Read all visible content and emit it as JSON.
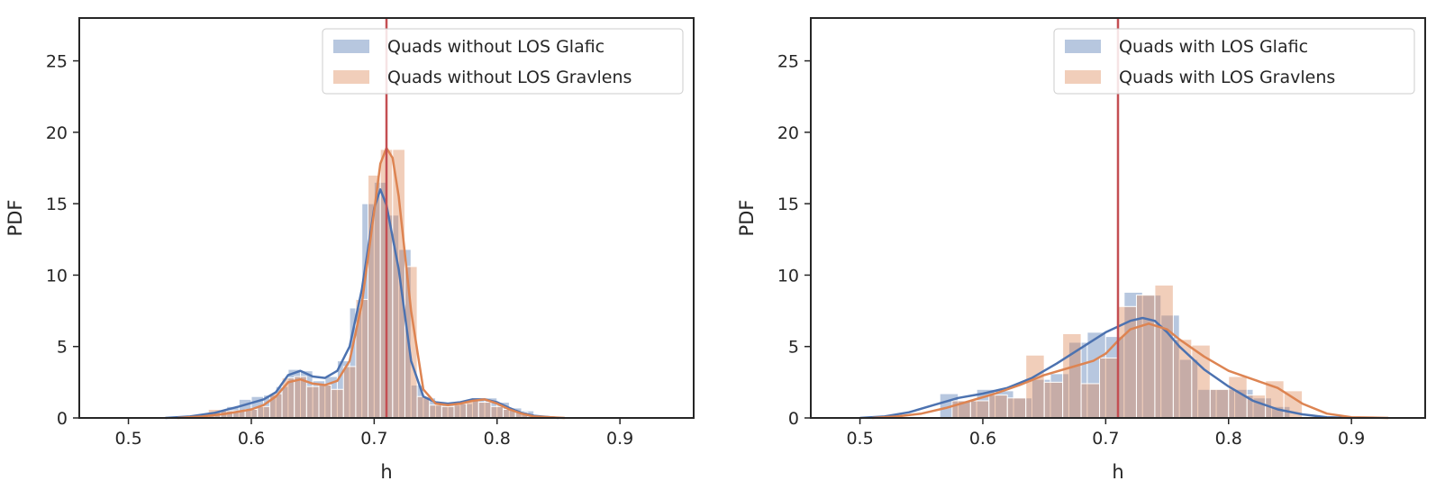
{
  "chart_data": [
    {
      "type": "histogram",
      "xlabel": "h",
      "ylabel": "PDF",
      "xlim": [
        0.46,
        0.96
      ],
      "ylim": [
        0,
        28
      ],
      "xticks": [
        0.5,
        0.6,
        0.7,
        0.8,
        0.9
      ],
      "xtick_labels": [
        "0.5",
        "0.6",
        "0.7",
        "0.8",
        "0.9"
      ],
      "yticks": [
        0,
        5,
        10,
        15,
        20,
        25
      ],
      "ytick_labels": [
        "0",
        "5",
        "10",
        "15",
        "20",
        "25"
      ],
      "grid": false,
      "legend_position": "top-right",
      "reference_line": {
        "x": 0.71,
        "color": "#c44e52"
      },
      "series": [
        {
          "name": "Quads without LOS Glafic",
          "color": "#4c72b0",
          "bins": [
            {
              "x0": 0.55,
              "x1": 0.56,
              "y": 0.1
            },
            {
              "x0": 0.56,
              "x1": 0.57,
              "y": 0.3
            },
            {
              "x0": 0.57,
              "x1": 0.58,
              "y": 0.5
            },
            {
              "x0": 0.58,
              "x1": 0.59,
              "y": 0.8
            },
            {
              "x0": 0.59,
              "x1": 0.6,
              "y": 1.3
            },
            {
              "x0": 0.6,
              "x1": 0.61,
              "y": 1.5
            },
            {
              "x0": 0.61,
              "x1": 0.62,
              "y": 1.6
            },
            {
              "x0": 0.62,
              "x1": 0.63,
              "y": 2.2
            },
            {
              "x0": 0.63,
              "x1": 0.64,
              "y": 3.4
            },
            {
              "x0": 0.64,
              "x1": 0.65,
              "y": 3.3
            },
            {
              "x0": 0.65,
              "x1": 0.66,
              "y": 2.6
            },
            {
              "x0": 0.66,
              "x1": 0.67,
              "y": 2.9
            },
            {
              "x0": 0.67,
              "x1": 0.68,
              "y": 4.0
            },
            {
              "x0": 0.68,
              "x1": 0.69,
              "y": 7.7
            },
            {
              "x0": 0.69,
              "x1": 0.7,
              "y": 15.0
            },
            {
              "x0": 0.7,
              "x1": 0.71,
              "y": 16.5
            },
            {
              "x0": 0.71,
              "x1": 0.72,
              "y": 14.2
            },
            {
              "x0": 0.72,
              "x1": 0.73,
              "y": 11.8
            },
            {
              "x0": 0.73,
              "x1": 0.74,
              "y": 2.3
            },
            {
              "x0": 0.74,
              "x1": 0.75,
              "y": 1.4
            },
            {
              "x0": 0.75,
              "x1": 0.76,
              "y": 1.1
            },
            {
              "x0": 0.76,
              "x1": 0.77,
              "y": 0.9
            },
            {
              "x0": 0.77,
              "x1": 0.78,
              "y": 1.0
            },
            {
              "x0": 0.78,
              "x1": 0.79,
              "y": 1.3
            },
            {
              "x0": 0.79,
              "x1": 0.8,
              "y": 1.4
            },
            {
              "x0": 0.8,
              "x1": 0.81,
              "y": 1.1
            },
            {
              "x0": 0.81,
              "x1": 0.82,
              "y": 0.7
            },
            {
              "x0": 0.82,
              "x1": 0.83,
              "y": 0.5
            }
          ],
          "kde": [
            [
              0.53,
              0
            ],
            [
              0.55,
              0.1
            ],
            [
              0.57,
              0.35
            ],
            [
              0.59,
              0.8
            ],
            [
              0.61,
              1.3
            ],
            [
              0.62,
              1.8
            ],
            [
              0.63,
              3.0
            ],
            [
              0.64,
              3.3
            ],
            [
              0.65,
              2.9
            ],
            [
              0.66,
              2.8
            ],
            [
              0.67,
              3.3
            ],
            [
              0.68,
              5.0
            ],
            [
              0.69,
              9.0
            ],
            [
              0.7,
              14.7
            ],
            [
              0.705,
              16.0
            ],
            [
              0.71,
              14.9
            ],
            [
              0.72,
              10.4
            ],
            [
              0.73,
              4.0
            ],
            [
              0.74,
              1.5
            ],
            [
              0.75,
              1.1
            ],
            [
              0.76,
              1.0
            ],
            [
              0.77,
              1.1
            ],
            [
              0.78,
              1.3
            ],
            [
              0.79,
              1.3
            ],
            [
              0.8,
              1.1
            ],
            [
              0.81,
              0.7
            ],
            [
              0.82,
              0.35
            ],
            [
              0.83,
              0.15
            ],
            [
              0.85,
              0
            ]
          ]
        },
        {
          "name": "Quads without LOS Gravlens",
          "color": "#dd8452",
          "bins": [
            {
              "x0": 0.565,
              "x1": 0.575,
              "y": 0.6
            },
            {
              "x0": 0.575,
              "x1": 0.585,
              "y": 0.5
            },
            {
              "x0": 0.585,
              "x1": 0.595,
              "y": 0.5
            },
            {
              "x0": 0.595,
              "x1": 0.605,
              "y": 0.6
            },
            {
              "x0": 0.605,
              "x1": 0.615,
              "y": 0.8
            },
            {
              "x0": 0.615,
              "x1": 0.625,
              "y": 1.7
            },
            {
              "x0": 0.625,
              "x1": 0.635,
              "y": 2.8
            },
            {
              "x0": 0.635,
              "x1": 0.645,
              "y": 2.9
            },
            {
              "x0": 0.645,
              "x1": 0.655,
              "y": 2.2
            },
            {
              "x0": 0.655,
              "x1": 0.665,
              "y": 2.3
            },
            {
              "x0": 0.665,
              "x1": 0.675,
              "y": 2.0
            },
            {
              "x0": 0.675,
              "x1": 0.685,
              "y": 3.6
            },
            {
              "x0": 0.685,
              "x1": 0.695,
              "y": 8.3
            },
            {
              "x0": 0.695,
              "x1": 0.705,
              "y": 17.0
            },
            {
              "x0": 0.705,
              "x1": 0.715,
              "y": 18.8
            },
            {
              "x0": 0.715,
              "x1": 0.725,
              "y": 18.8
            },
            {
              "x0": 0.725,
              "x1": 0.735,
              "y": 10.6
            },
            {
              "x0": 0.735,
              "x1": 0.745,
              "y": 1.5
            },
            {
              "x0": 0.745,
              "x1": 0.755,
              "y": 0.9
            },
            {
              "x0": 0.755,
              "x1": 0.765,
              "y": 0.8
            },
            {
              "x0": 0.765,
              "x1": 0.775,
              "y": 1.0
            },
            {
              "x0": 0.775,
              "x1": 0.785,
              "y": 1.2
            },
            {
              "x0": 0.785,
              "x1": 0.795,
              "y": 1.1
            },
            {
              "x0": 0.795,
              "x1": 0.805,
              "y": 0.8
            },
            {
              "x0": 0.805,
              "x1": 0.815,
              "y": 0.6
            },
            {
              "x0": 0.815,
              "x1": 0.825,
              "y": 0.4
            }
          ],
          "kde": [
            [
              0.54,
              0
            ],
            [
              0.56,
              0.1
            ],
            [
              0.58,
              0.3
            ],
            [
              0.6,
              0.6
            ],
            [
              0.61,
              0.9
            ],
            [
              0.62,
              1.5
            ],
            [
              0.63,
              2.5
            ],
            [
              0.64,
              2.7
            ],
            [
              0.65,
              2.4
            ],
            [
              0.66,
              2.3
            ],
            [
              0.67,
              2.6
            ],
            [
              0.68,
              4.0
            ],
            [
              0.69,
              8.0
            ],
            [
              0.7,
              14.5
            ],
            [
              0.705,
              17.8
            ],
            [
              0.71,
              18.9
            ],
            [
              0.715,
              18.2
            ],
            [
              0.72,
              15.5
            ],
            [
              0.73,
              7.5
            ],
            [
              0.74,
              2.0
            ],
            [
              0.75,
              1.0
            ],
            [
              0.76,
              0.9
            ],
            [
              0.77,
              1.0
            ],
            [
              0.78,
              1.2
            ],
            [
              0.79,
              1.3
            ],
            [
              0.8,
              1.0
            ],
            [
              0.81,
              0.6
            ],
            [
              0.82,
              0.3
            ],
            [
              0.83,
              0.1
            ],
            [
              0.855,
              0
            ]
          ]
        }
      ]
    },
    {
      "type": "histogram",
      "xlabel": "h",
      "ylabel": "PDF",
      "xlim": [
        0.46,
        0.96
      ],
      "ylim": [
        0,
        28
      ],
      "xticks": [
        0.5,
        0.6,
        0.7,
        0.8,
        0.9
      ],
      "xtick_labels": [
        "0.5",
        "0.6",
        "0.7",
        "0.8",
        "0.9"
      ],
      "yticks": [
        0,
        5,
        10,
        15,
        20,
        25
      ],
      "ytick_labels": [
        "0",
        "5",
        "10",
        "15",
        "20",
        "25"
      ],
      "grid": false,
      "legend_position": "top-right",
      "reference_line": {
        "x": 0.71,
        "color": "#c44e52"
      },
      "series": [
        {
          "name": "Quads with LOS Glafic",
          "color": "#4c72b0",
          "bins": [
            {
              "x0": 0.565,
              "x1": 0.58,
              "y": 1.7
            },
            {
              "x0": 0.58,
              "x1": 0.595,
              "y": 1.2
            },
            {
              "x0": 0.595,
              "x1": 0.61,
              "y": 2.0
            },
            {
              "x0": 0.61,
              "x1": 0.625,
              "y": 1.9
            },
            {
              "x0": 0.625,
              "x1": 0.64,
              "y": 1.4
            },
            {
              "x0": 0.64,
              "x1": 0.655,
              "y": 2.7
            },
            {
              "x0": 0.655,
              "x1": 0.67,
              "y": 3.1
            },
            {
              "x0": 0.67,
              "x1": 0.685,
              "y": 5.3
            },
            {
              "x0": 0.685,
              "x1": 0.7,
              "y": 6.0
            },
            {
              "x0": 0.7,
              "x1": 0.715,
              "y": 5.7
            },
            {
              "x0": 0.715,
              "x1": 0.73,
              "y": 8.8
            },
            {
              "x0": 0.73,
              "x1": 0.745,
              "y": 8.6
            },
            {
              "x0": 0.745,
              "x1": 0.76,
              "y": 7.2
            },
            {
              "x0": 0.76,
              "x1": 0.775,
              "y": 4.1
            },
            {
              "x0": 0.775,
              "x1": 0.79,
              "y": 2.0
            },
            {
              "x0": 0.79,
              "x1": 0.805,
              "y": 2.0
            },
            {
              "x0": 0.805,
              "x1": 0.82,
              "y": 2.0
            },
            {
              "x0": 0.82,
              "x1": 0.835,
              "y": 1.4
            },
            {
              "x0": 0.835,
              "x1": 0.85,
              "y": 0.8
            }
          ],
          "kde": [
            [
              0.5,
              0
            ],
            [
              0.52,
              0.1
            ],
            [
              0.54,
              0.4
            ],
            [
              0.56,
              0.9
            ],
            [
              0.58,
              1.4
            ],
            [
              0.6,
              1.7
            ],
            [
              0.62,
              2.1
            ],
            [
              0.64,
              2.8
            ],
            [
              0.66,
              3.8
            ],
            [
              0.68,
              4.9
            ],
            [
              0.7,
              6.0
            ],
            [
              0.72,
              6.8
            ],
            [
              0.73,
              7.0
            ],
            [
              0.74,
              6.8
            ],
            [
              0.75,
              6.0
            ],
            [
              0.76,
              5.0
            ],
            [
              0.78,
              3.4
            ],
            [
              0.8,
              2.2
            ],
            [
              0.82,
              1.2
            ],
            [
              0.84,
              0.6
            ],
            [
              0.86,
              0.25
            ],
            [
              0.88,
              0.05
            ],
            [
              0.9,
              0
            ]
          ]
        },
        {
          "name": "Quads with LOS Gravlens",
          "color": "#dd8452",
          "bins": [
            {
              "x0": 0.575,
              "x1": 0.59,
              "y": 1.2
            },
            {
              "x0": 0.59,
              "x1": 0.605,
              "y": 1.2
            },
            {
              "x0": 0.605,
              "x1": 0.62,
              "y": 1.6
            },
            {
              "x0": 0.62,
              "x1": 0.635,
              "y": 1.4
            },
            {
              "x0": 0.635,
              "x1": 0.65,
              "y": 4.4
            },
            {
              "x0": 0.65,
              "x1": 0.665,
              "y": 2.5
            },
            {
              "x0": 0.665,
              "x1": 0.68,
              "y": 5.9
            },
            {
              "x0": 0.68,
              "x1": 0.695,
              "y": 2.4
            },
            {
              "x0": 0.695,
              "x1": 0.71,
              "y": 4.2
            },
            {
              "x0": 0.71,
              "x1": 0.725,
              "y": 7.8
            },
            {
              "x0": 0.725,
              "x1": 0.74,
              "y": 8.6
            },
            {
              "x0": 0.74,
              "x1": 0.755,
              "y": 9.3
            },
            {
              "x0": 0.755,
              "x1": 0.77,
              "y": 5.5
            },
            {
              "x0": 0.77,
              "x1": 0.785,
              "y": 5.1
            },
            {
              "x0": 0.785,
              "x1": 0.8,
              "y": 2.0
            },
            {
              "x0": 0.8,
              "x1": 0.815,
              "y": 2.9
            },
            {
              "x0": 0.815,
              "x1": 0.83,
              "y": 1.6
            },
            {
              "x0": 0.83,
              "x1": 0.845,
              "y": 2.6
            },
            {
              "x0": 0.845,
              "x1": 0.86,
              "y": 1.9
            }
          ],
          "kde": [
            [
              0.51,
              0
            ],
            [
              0.53,
              0.1
            ],
            [
              0.55,
              0.3
            ],
            [
              0.57,
              0.7
            ],
            [
              0.59,
              1.2
            ],
            [
              0.61,
              1.7
            ],
            [
              0.63,
              2.3
            ],
            [
              0.65,
              3.0
            ],
            [
              0.67,
              3.5
            ],
            [
              0.69,
              4.0
            ],
            [
              0.7,
              4.5
            ],
            [
              0.71,
              5.4
            ],
            [
              0.72,
              6.2
            ],
            [
              0.735,
              6.6
            ],
            [
              0.75,
              6.2
            ],
            [
              0.76,
              5.5
            ],
            [
              0.78,
              4.3
            ],
            [
              0.8,
              3.3
            ],
            [
              0.82,
              2.7
            ],
            [
              0.84,
              2.1
            ],
            [
              0.86,
              1.0
            ],
            [
              0.88,
              0.3
            ],
            [
              0.9,
              0.05
            ],
            [
              0.93,
              0
            ]
          ]
        }
      ]
    }
  ]
}
